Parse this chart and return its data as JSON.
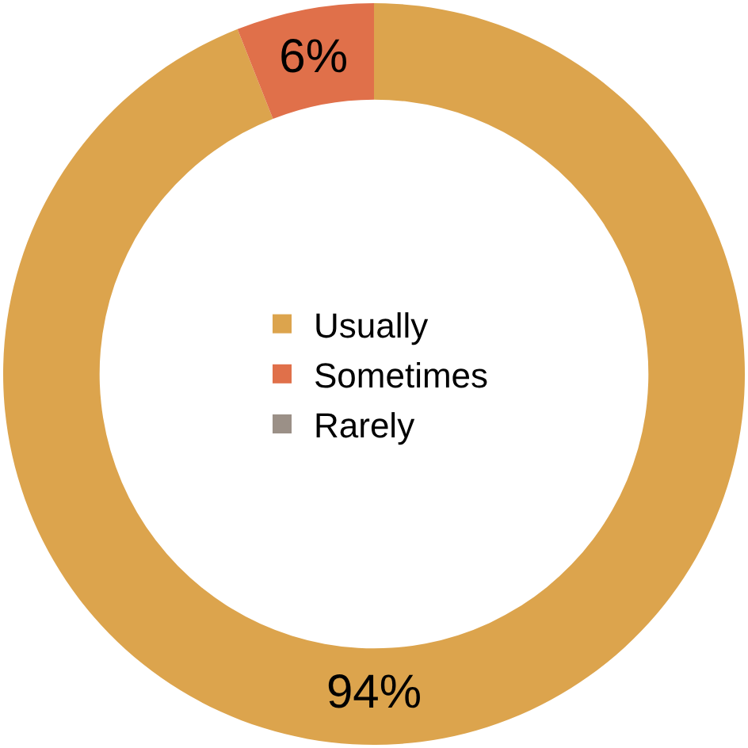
{
  "chart_data": {
    "type": "donut",
    "categories": [
      "Usually",
      "Sometimes",
      "Rarely"
    ],
    "values": [
      94,
      6,
      0
    ],
    "colors": [
      "#dca44d",
      "#e0704a",
      "#9b9087"
    ],
    "value_labels": [
      "94%",
      "6%",
      null
    ],
    "legend": "center"
  }
}
